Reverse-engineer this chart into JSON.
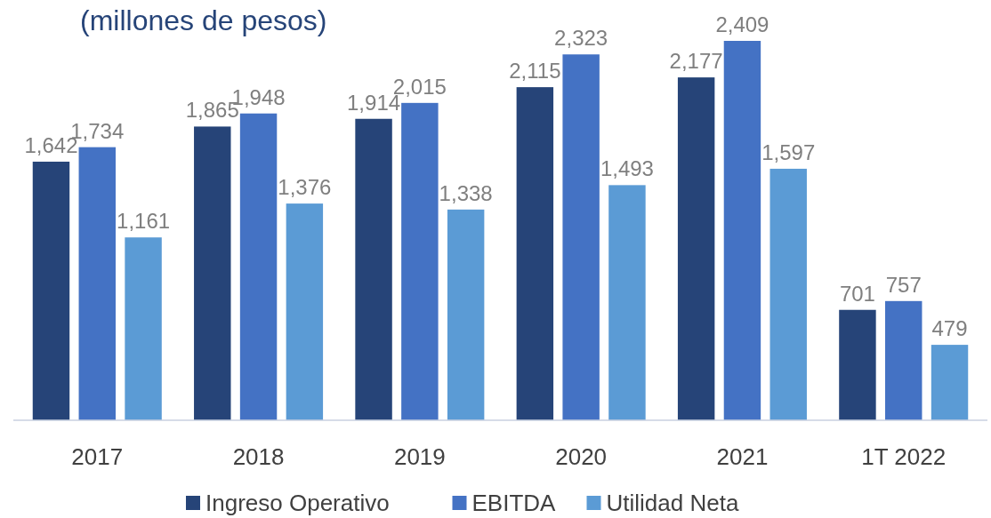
{
  "chart_data": {
    "type": "bar",
    "title": "(millones de pesos)",
    "categories": [
      "2017",
      "2018",
      "2019",
      "2020",
      "2021",
      "1T 2022"
    ],
    "series": [
      {
        "name": "Ingreso Operativo",
        "color": "#264478",
        "values": [
          1642,
          1865,
          1914,
          2115,
          2177,
          701
        ],
        "value_labels": [
          "1,642",
          "1,865",
          "1,914",
          "2,115",
          "2,177",
          "701"
        ]
      },
      {
        "name": "EBITDA",
        "color": "#4472c4",
        "values": [
          1734,
          1948,
          2015,
          2323,
          2409,
          757
        ],
        "value_labels": [
          "1,734",
          "1,948",
          "2,015",
          "2,323",
          "2,409",
          "757"
        ]
      },
      {
        "name": "Utilidad Neta",
        "color": "#5b9bd5",
        "values": [
          1161,
          1376,
          1338,
          1493,
          1597,
          479
        ],
        "value_labels": [
          "1,161",
          "1,376",
          "1,338",
          "1,493",
          "1,597",
          "479"
        ]
      }
    ],
    "legend": "bottom"
  }
}
